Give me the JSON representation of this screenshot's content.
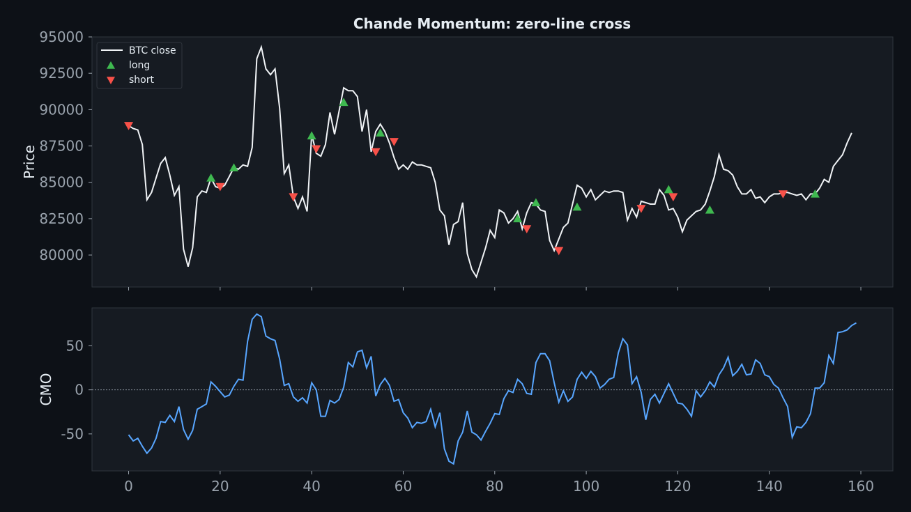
{
  "colors": {
    "background": "#0d1117",
    "panel": "#161b22",
    "panel_border": "#30363d",
    "text": "#e6edf3",
    "tick_text": "#9aa3ad",
    "price_line": "#f0f3f6",
    "cmo_line": "#58a6ff",
    "long": "#3fb950",
    "short": "#f85149",
    "zero_line": "#8b949e"
  },
  "chart_data": {
    "type": "line",
    "title": "Chande Momentum: zero-line cross",
    "xlim": [
      -8,
      167
    ],
    "x_ticks": [
      0,
      20,
      40,
      60,
      80,
      100,
      120,
      140,
      160
    ],
    "price_panel": {
      "ylabel": "Price",
      "ylim": [
        77800,
        95000
      ],
      "y_ticks": [
        80000,
        82500,
        85000,
        87500,
        90000,
        92500,
        95000
      ],
      "legend": {
        "placement": "top-left",
        "entries": [
          {
            "label": "BTC close",
            "kind": "line"
          },
          {
            "label": "long",
            "kind": "up-triangle"
          },
          {
            "label": "short",
            "kind": "down-triangle"
          }
        ]
      },
      "series": [
        {
          "name": "BTC close",
          "values": [
            88900,
            88700,
            88600,
            87600,
            83800,
            84300,
            85300,
            86300,
            86700,
            85500,
            84100,
            84700,
            80400,
            79200,
            80500,
            84000,
            84400,
            84300,
            85300,
            84700,
            84600,
            84800,
            85400,
            86000,
            85900,
            86200,
            86100,
            87400,
            93500,
            94300,
            92800,
            92400,
            92800,
            90100,
            85600,
            86200,
            84000,
            83200,
            84000,
            83000,
            88300,
            87000,
            86800,
            87600,
            89800,
            88300,
            89900,
            91500,
            91300,
            91300,
            90900,
            88500,
            90000,
            87100,
            88500,
            89000,
            88500,
            87700,
            86700,
            85900,
            86200,
            85900,
            86400,
            86200,
            86200,
            86100,
            86000,
            85000,
            83100,
            82700,
            80700,
            82100,
            82300,
            83600,
            80100,
            79000,
            78500,
            79500,
            80500,
            81700,
            81200,
            83100,
            82900,
            82200,
            82500,
            83000,
            81800,
            82900,
            83600,
            83500,
            83100,
            83000,
            81000,
            80300,
            81100,
            81900,
            82200,
            83500,
            84800,
            84600,
            84000,
            84500,
            83800,
            84100,
            84400,
            84300,
            84400,
            84400,
            84300,
            82400,
            83200,
            82600,
            83700,
            83600,
            83500,
            83500,
            84500,
            84100,
            83100,
            83200,
            82600,
            81600,
            82400,
            82700,
            83000,
            83100,
            83500,
            84400,
            85400,
            86900,
            85900,
            85800,
            85500,
            84700,
            84200,
            84200,
            84500,
            83900,
            84000,
            83600,
            84000,
            84200,
            84200,
            84300,
            84300,
            84200,
            84100,
            84200,
            83800,
            84200,
            84200,
            84600,
            85200,
            85000,
            86100,
            86500,
            86900,
            87700,
            88400
          ]
        }
      ],
      "long_signals": [
        {
          "x": 18,
          "y": 85300
        },
        {
          "x": 23,
          "y": 86000
        },
        {
          "x": 40,
          "y": 88200
        },
        {
          "x": 47,
          "y": 90500
        },
        {
          "x": 55,
          "y": 88400
        },
        {
          "x": 85,
          "y": 82500
        },
        {
          "x": 89,
          "y": 83600
        },
        {
          "x": 98,
          "y": 83300
        },
        {
          "x": 118,
          "y": 84500
        },
        {
          "x": 127,
          "y": 83100
        },
        {
          "x": 150,
          "y": 84200
        }
      ],
      "short_signals": [
        {
          "x": 0,
          "y": 88900
        },
        {
          "x": 20,
          "y": 84700
        },
        {
          "x": 36,
          "y": 84000
        },
        {
          "x": 41,
          "y": 87300
        },
        {
          "x": 54,
          "y": 87100
        },
        {
          "x": 58,
          "y": 87800
        },
        {
          "x": 87,
          "y": 81800
        },
        {
          "x": 94,
          "y": 80300
        },
        {
          "x": 112,
          "y": 83200
        },
        {
          "x": 119,
          "y": 84000
        },
        {
          "x": 143,
          "y": 84200
        }
      ]
    },
    "cmo_panel": {
      "ylabel": "CMO",
      "ylim": [
        -92,
        93
      ],
      "y_ticks": [
        -50,
        0,
        50
      ],
      "y_tick_labels": [
        "-50",
        "0",
        "50"
      ],
      "zero_line": true,
      "series": [
        {
          "name": "CMO",
          "values": [
            -51,
            -58,
            -55,
            -64,
            -72,
            -66,
            -55,
            -36,
            -37,
            -29,
            -36,
            -19,
            -45,
            -56,
            -46,
            -22,
            -19,
            -16,
            9,
            4,
            -2,
            -8,
            -6,
            4,
            12,
            11,
            55,
            80,
            86,
            83,
            61,
            58,
            56,
            35,
            5,
            7,
            -8,
            -13,
            -9,
            -15,
            8,
            0,
            -30,
            -30,
            -12,
            -15,
            -11,
            3,
            31,
            26,
            43,
            45,
            25,
            38,
            -7,
            6,
            13,
            5,
            -13,
            -11,
            -26,
            -32,
            -43,
            -37,
            -38,
            -36,
            -22,
            -42,
            -26,
            -67,
            -81,
            -84,
            -58,
            -48,
            -24,
            -48,
            -51,
            -57,
            -47,
            -38,
            -27,
            -28,
            -10,
            -1,
            -3,
            12,
            7,
            -4,
            -5,
            31,
            41,
            41,
            33,
            8,
            -14,
            -1,
            -13,
            -8,
            12,
            20,
            13,
            21,
            15,
            2,
            6,
            12,
            14,
            42,
            58,
            51,
            7,
            15,
            -3,
            -34,
            -11,
            -5,
            -15,
            -4,
            7,
            -4,
            -15,
            -16,
            -22,
            -30,
            -1,
            -8,
            -1,
            9,
            3,
            17,
            25,
            37,
            16,
            21,
            29,
            17,
            18,
            34,
            30,
            17,
            15,
            6,
            2,
            -9,
            -19,
            -54,
            -42,
            -43,
            -37,
            -27,
            2,
            2,
            8,
            39,
            30,
            65,
            66,
            68,
            73,
            76
          ]
        }
      ]
    }
  }
}
